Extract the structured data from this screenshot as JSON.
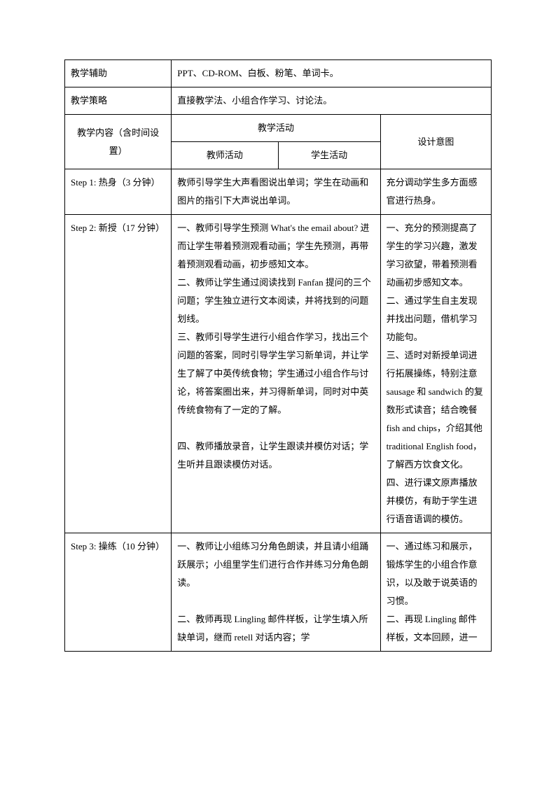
{
  "table": {
    "rows": [
      {
        "cells": [
          {
            "text": "教学辅助",
            "colspan": 1
          },
          {
            "text": "PPT、CD-ROM、白板、粉笔、单词卡。",
            "colspan": 3
          }
        ]
      },
      {
        "cells": [
          {
            "text": "教学策略",
            "colspan": 1
          },
          {
            "text": "直接教学法、小组合作学习、讨论法。",
            "colspan": 3
          }
        ]
      },
      {
        "cells": [
          {
            "text": "教学内容（含时间设置）",
            "colspan": 1,
            "rowspan": 2,
            "center": true
          },
          {
            "text": "教学活动",
            "colspan": 2,
            "center": true
          },
          {
            "text": "设计意图",
            "colspan": 1,
            "rowspan": 2,
            "center": true
          }
        ]
      },
      {
        "cells": [
          {
            "text": "教师活动",
            "colspan": 1,
            "center": true
          },
          {
            "text": "学生活动",
            "colspan": 1,
            "center": true
          }
        ]
      },
      {
        "cells": [
          {
            "text": "Step 1:  热身（3 分钟）",
            "colspan": 1
          },
          {
            "text": "教师引导学生大声看图说出单词；学生在动画和图片的指引下大声说出单词。",
            "colspan": 2
          },
          {
            "text": "充分调动学生多方面感官进行热身。",
            "colspan": 1
          }
        ]
      },
      {
        "cells": [
          {
            "text": "Step 2:  新授（17 分钟）",
            "colspan": 1
          },
          {
            "text": "一、教师引导学生预测 What's the email about?  进而让学生带着预测观看动画；学生先预测，再带着预测观看动画，初步感知文本。\n二、教师让学生通过阅读找到 Fanfan 提问的三个问题；学生独立进行文本阅读，并将找到的问题划线。\n三、教师引导学生进行小组合作学习，找出三个问题的答案，同时引导学生学习新单词，并让学生了解了中英传统食物；学生通过小组合作与讨论，将答案圈出来，并习得新单词，同时对中英传统食物有了一定的了解。\n\n四、教师播放录音，让学生跟读并模仿对话；学生听并且跟读模仿对话。",
            "colspan": 2
          },
          {
            "text": "一、充分的预测提高了学生的学习兴趣，激发学习欲望，带着预测看动画初步感知文本。\n二、通过学生自主发现并找出问题，借机学习功能句。\n三、适时对新授单词进行拓展操练，特别注意sausage 和 sandwich 的复数形式读音；结合晚餐fish and chips，介绍其他traditional English food，了解西方饮食文化。\n四、进行课文原声播放并模仿，有助于学生进行语音语调的模仿。",
            "colspan": 1
          }
        ]
      },
      {
        "cells": [
          {
            "text": "Step 3:  操练（10 分钟）",
            "colspan": 1
          },
          {
            "text": "一、教师让小组练习分角色朗读，并且请小组踊跃展示；小组里学生们进行合作并练习分角色朗读。\n\n二、教师再现 Lingling 邮件样板，让学生填入所缺单词，继而 retell 对话内容；学",
            "colspan": 2
          },
          {
            "text": "一、通过练习和展示，锻炼学生的小组合作意识，以及敢于说英语的习惯。\n二、再现 Lingling 邮件样板，文本回顾，进一",
            "colspan": 1
          }
        ]
      }
    ]
  }
}
